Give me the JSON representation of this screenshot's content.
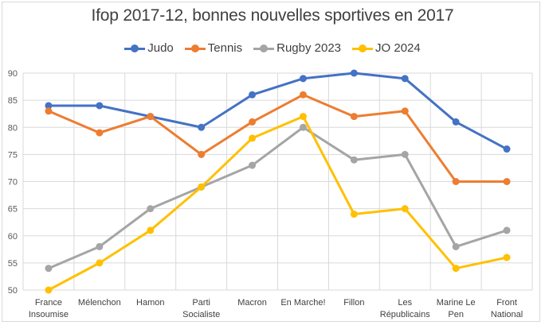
{
  "chart_data": {
    "type": "line",
    "title": "Ifop 2017-12, bonnes nouvelles sportives en 2017",
    "xlabel": "",
    "ylabel": "",
    "ylim": [
      50,
      90
    ],
    "yticks": [
      50,
      55,
      60,
      65,
      70,
      75,
      80,
      85,
      90
    ],
    "grid": true,
    "legend_position": "top",
    "categories": [
      [
        "France",
        "Insoumise"
      ],
      [
        "Mélenchon"
      ],
      [
        "Hamon"
      ],
      [
        "Parti",
        "Socialiste"
      ],
      [
        "Macron"
      ],
      [
        "En Marche!"
      ],
      [
        "Fillon"
      ],
      [
        "Les",
        "Républicains"
      ],
      [
        "Marine Le",
        "Pen"
      ],
      [
        "Front",
        "National"
      ]
    ],
    "series": [
      {
        "name": "Judo",
        "color": "#4472c4",
        "values": [
          84,
          84,
          82,
          80,
          86,
          89,
          90,
          89,
          81,
          76
        ]
      },
      {
        "name": "Tennis",
        "color": "#ed7d31",
        "values": [
          83,
          79,
          82,
          75,
          81,
          86,
          82,
          83,
          70,
          70
        ]
      },
      {
        "name": "Rugby 2023",
        "color": "#a5a5a5",
        "values": [
          54,
          58,
          65,
          69,
          73,
          80,
          74,
          75,
          58,
          61
        ]
      },
      {
        "name": "JO 2024",
        "color": "#ffc000",
        "values": [
          50,
          55,
          61,
          69,
          78,
          82,
          64,
          65,
          54,
          56
        ]
      }
    ]
  }
}
